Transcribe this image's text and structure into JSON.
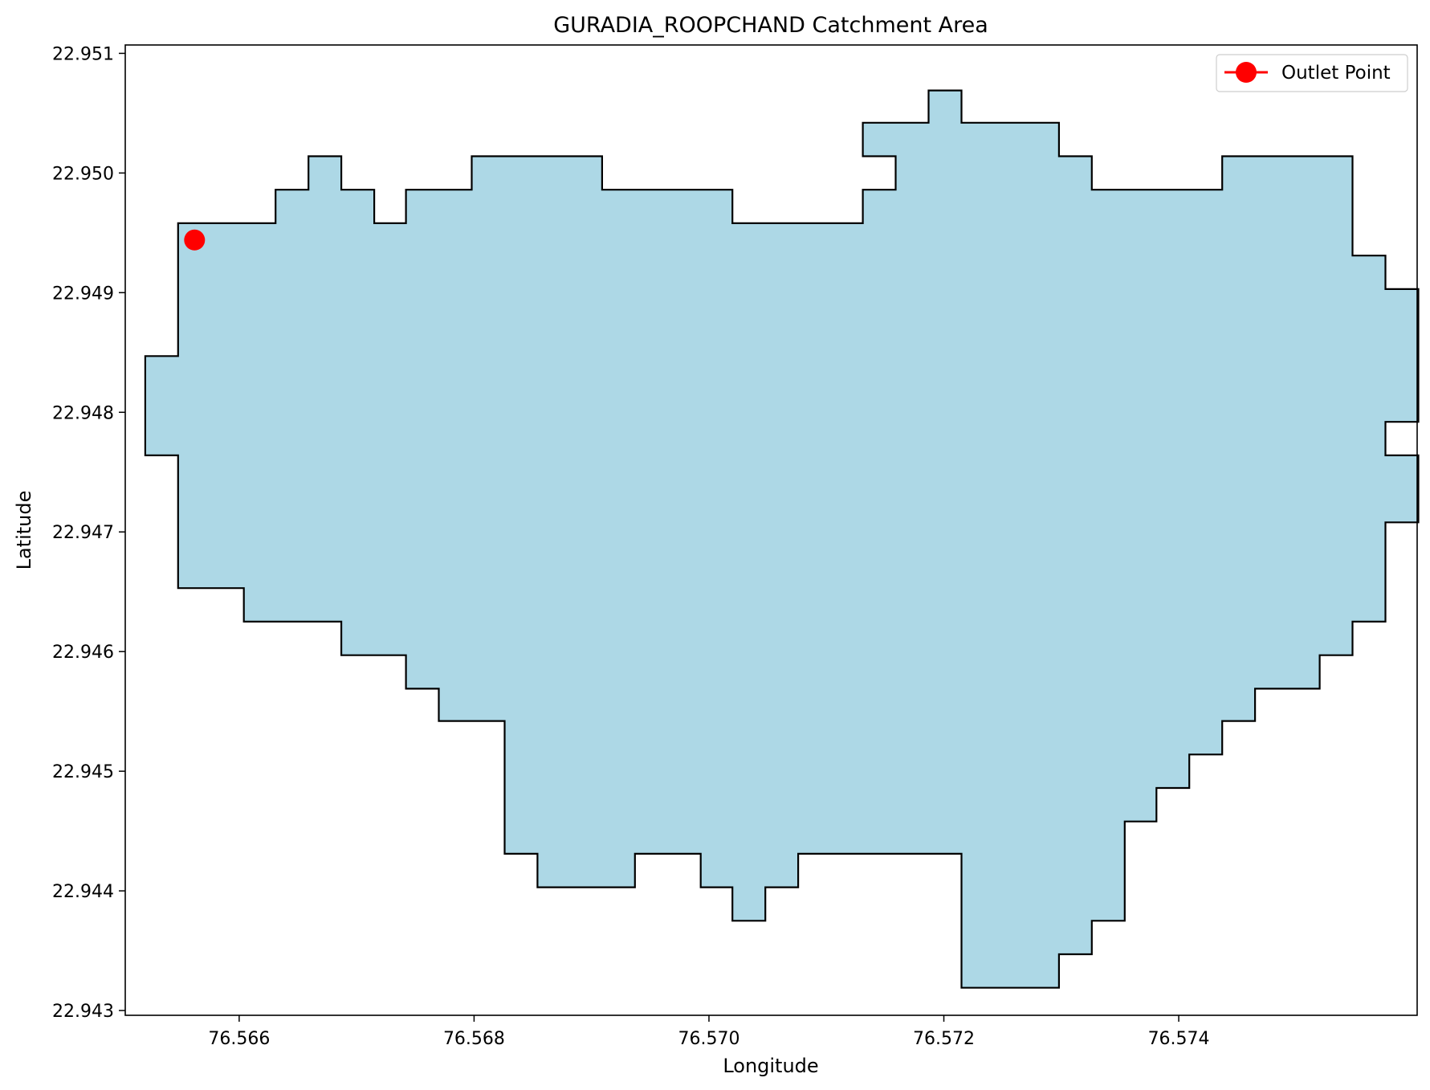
{
  "chart_data": {
    "type": "area",
    "title": "GURADIA_ROOPCHAND Catchment Area",
    "xlabel": "Longitude",
    "ylabel": "Latitude",
    "xlim": [
      76.56503,
      76.57603
    ],
    "ylim": [
      22.94296,
      22.95107
    ],
    "xticks": [
      76.566,
      76.568,
      76.57,
      76.572,
      76.574
    ],
    "xtick_labels": [
      "76.566",
      "76.568",
      "76.570",
      "76.572",
      "76.574"
    ],
    "yticks": [
      22.943,
      22.944,
      22.945,
      22.946,
      22.947,
      22.948,
      22.949,
      22.95,
      22.951
    ],
    "ytick_labels": [
      "22.943",
      "22.944",
      "22.945",
      "22.946",
      "22.947",
      "22.948",
      "22.949",
      "22.950",
      "22.951"
    ],
    "grid": false,
    "legend": {
      "placement": "top-right",
      "entries": [
        "Outlet Point"
      ]
    },
    "colors": {
      "fill": "#add8e6",
      "edge": "#000000",
      "outlet": "#ff0000"
    },
    "outlet_point": {
      "name": "Outlet Point",
      "x": 76.56562,
      "y": 22.94944
    },
    "polygon": [
      [
        76.56548,
        22.94958
      ],
      [
        76.56631,
        22.94958
      ],
      [
        76.56631,
        22.94986
      ],
      [
        76.56659,
        22.94986
      ],
      [
        76.56659,
        22.95014
      ],
      [
        76.56687,
        22.95014
      ],
      [
        76.56687,
        22.94986
      ],
      [
        76.56715,
        22.94986
      ],
      [
        76.56715,
        22.94958
      ],
      [
        76.56742,
        22.94958
      ],
      [
        76.56742,
        22.94986
      ],
      [
        76.56798,
        22.94986
      ],
      [
        76.56798,
        22.95014
      ],
      [
        76.56909,
        22.95014
      ],
      [
        76.56909,
        22.94986
      ],
      [
        76.5702,
        22.94986
      ],
      [
        76.5702,
        22.94958
      ],
      [
        76.57131,
        22.94958
      ],
      [
        76.57131,
        22.94986
      ],
      [
        76.57159,
        22.94986
      ],
      [
        76.57159,
        22.95014
      ],
      [
        76.57131,
        22.95014
      ],
      [
        76.57131,
        22.95042
      ],
      [
        76.57187,
        22.95042
      ],
      [
        76.57187,
        22.95069
      ],
      [
        76.57215,
        22.95069
      ],
      [
        76.57215,
        22.95042
      ],
      [
        76.57298,
        22.95042
      ],
      [
        76.57298,
        22.95014
      ],
      [
        76.57326,
        22.95014
      ],
      [
        76.57326,
        22.94986
      ],
      [
        76.57437,
        22.94986
      ],
      [
        76.57437,
        22.95014
      ],
      [
        76.57548,
        22.95014
      ],
      [
        76.57548,
        22.94931
      ],
      [
        76.57576,
        22.94931
      ],
      [
        76.57576,
        22.94903
      ],
      [
        76.57604,
        22.94903
      ],
      [
        76.57604,
        22.94792
      ],
      [
        76.57576,
        22.94792
      ],
      [
        76.57576,
        22.94764
      ],
      [
        76.57604,
        22.94764
      ],
      [
        76.57604,
        22.94708
      ],
      [
        76.57576,
        22.94708
      ],
      [
        76.57576,
        22.94625
      ],
      [
        76.57548,
        22.94625
      ],
      [
        76.57548,
        22.94597
      ],
      [
        76.5752,
        22.94597
      ],
      [
        76.5752,
        22.94569
      ],
      [
        76.57465,
        22.94569
      ],
      [
        76.57465,
        22.94542
      ],
      [
        76.57437,
        22.94542
      ],
      [
        76.57437,
        22.94514
      ],
      [
        76.57409,
        22.94514
      ],
      [
        76.57409,
        22.94486
      ],
      [
        76.57381,
        22.94486
      ],
      [
        76.57381,
        22.94458
      ],
      [
        76.57354,
        22.94458
      ],
      [
        76.57354,
        22.94375
      ],
      [
        76.57326,
        22.94375
      ],
      [
        76.57326,
        22.94347
      ],
      [
        76.57298,
        22.94347
      ],
      [
        76.57298,
        22.94319
      ],
      [
        76.57215,
        22.94319
      ],
      [
        76.57215,
        22.94431
      ],
      [
        76.57076,
        22.94431
      ],
      [
        76.57076,
        22.94403
      ],
      [
        76.57048,
        22.94403
      ],
      [
        76.57048,
        22.94375
      ],
      [
        76.5702,
        22.94375
      ],
      [
        76.5702,
        22.94403
      ],
      [
        76.56993,
        22.94403
      ],
      [
        76.56993,
        22.94431
      ],
      [
        76.56937,
        22.94431
      ],
      [
        76.56937,
        22.94403
      ],
      [
        76.56854,
        22.94403
      ],
      [
        76.56854,
        22.94431
      ],
      [
        76.56826,
        22.94431
      ],
      [
        76.56826,
        22.94542
      ],
      [
        76.5677,
        22.94542
      ],
      [
        76.5677,
        22.94569
      ],
      [
        76.56742,
        22.94569
      ],
      [
        76.56742,
        22.94597
      ],
      [
        76.56687,
        22.94597
      ],
      [
        76.56687,
        22.94625
      ],
      [
        76.56604,
        22.94625
      ],
      [
        76.56604,
        22.94653
      ],
      [
        76.56548,
        22.94653
      ],
      [
        76.56548,
        22.94764
      ],
      [
        76.5652,
        22.94764
      ],
      [
        76.5652,
        22.94847
      ],
      [
        76.56548,
        22.94847
      ]
    ]
  }
}
